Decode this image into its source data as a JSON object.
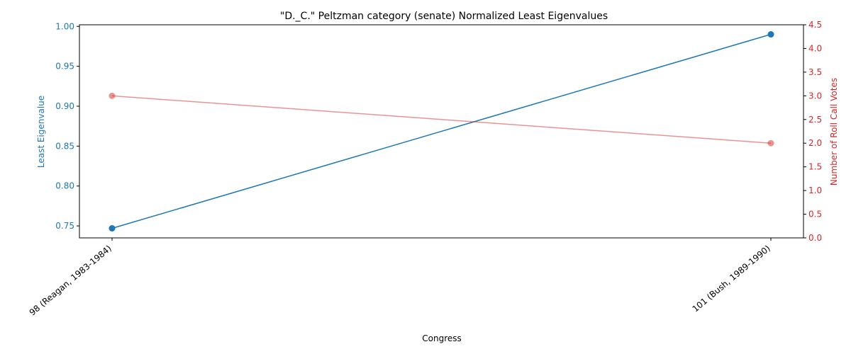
{
  "chart_data": {
    "type": "line",
    "title": "\"D._C.\" Peltzman category (senate) Normalized Least Eigenvalues",
    "xlabel": "Congress",
    "categories": [
      "98 (Reagan, 1983-1984)",
      "101 (Bush, 1989-1990)"
    ],
    "grid": false,
    "legend": "none",
    "left_axis": {
      "label": "Least Eigenvalue",
      "color": "#1f77b4",
      "ylim": [
        0.735,
        1.002
      ],
      "ticks": [
        0.75,
        0.8,
        0.85,
        0.9,
        0.95,
        1.0
      ],
      "tick_labels": [
        "0.75",
        "0.80",
        "0.85",
        "0.90",
        "0.95",
        "1.00"
      ]
    },
    "right_axis": {
      "label": "Number of Roll Call Votes",
      "color": "#d62728",
      "ylim": [
        0.0,
        4.5
      ],
      "ticks": [
        0.0,
        0.5,
        1.0,
        1.5,
        2.0,
        2.5,
        3.0,
        3.5,
        4.0,
        4.5
      ],
      "tick_labels": [
        "0.0",
        "0.5",
        "1.0",
        "1.5",
        "2.0",
        "2.5",
        "3.0",
        "3.5",
        "4.0",
        "4.5"
      ]
    },
    "series": [
      {
        "axis": "left",
        "color": "#1f77b4",
        "opacity": 1.0,
        "values": [
          0.747,
          0.99
        ]
      },
      {
        "axis": "right",
        "color": "#d62728",
        "opacity": 0.5,
        "values": [
          3.0,
          2.0
        ]
      }
    ]
  }
}
